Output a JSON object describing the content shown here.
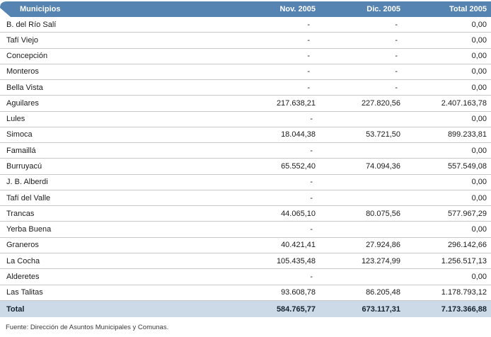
{
  "table": {
    "columns": [
      "Municipios",
      "Nov. 2005",
      "Dic. 2005",
      "Total 2005"
    ],
    "rows": [
      {
        "name": "B. del Río Salí",
        "nov": "-",
        "dic": "-",
        "total": "0,00"
      },
      {
        "name": "Tafí Viejo",
        "nov": "-",
        "dic": "-",
        "total": "0,00"
      },
      {
        "name": "Concepción",
        "nov": "-",
        "dic": "-",
        "total": "0,00"
      },
      {
        "name": "Monteros",
        "nov": "-",
        "dic": "-",
        "total": "0,00"
      },
      {
        "name": "Bella Vista",
        "nov": "-",
        "dic": "-",
        "total": "0,00"
      },
      {
        "name": "Aguilares",
        "nov": "217.638,21",
        "dic": "227.820,56",
        "total": "2.407.163,78"
      },
      {
        "name": "Lules",
        "nov": "-",
        "dic": "",
        "total": "0,00"
      },
      {
        "name": "Simoca",
        "nov": "18.044,38",
        "dic": "53.721,50",
        "total": "899.233,81"
      },
      {
        "name": "Famaillá",
        "nov": "-",
        "dic": "",
        "total": "0,00"
      },
      {
        "name": "Burruyacú",
        "nov": "65.552,40",
        "dic": "74.094,36",
        "total": "557.549,08"
      },
      {
        "name": "J. B. Alberdi",
        "nov": "-",
        "dic": "",
        "total": "0,00"
      },
      {
        "name": "Tafí del Valle",
        "nov": "-",
        "dic": "",
        "total": "0,00"
      },
      {
        "name": "Trancas",
        "nov": "44.065,10",
        "dic": "80.075,56",
        "total": "577.967,29"
      },
      {
        "name": "Yerba Buena",
        "nov": "-",
        "dic": "",
        "total": "0,00"
      },
      {
        "name": "Graneros",
        "nov": "40.421,41",
        "dic": "27.924,86",
        "total": "296.142,66"
      },
      {
        "name": "La Cocha",
        "nov": "105.435,48",
        "dic": "123.274,99",
        "total": "1.256.517,13"
      },
      {
        "name": "Alderetes",
        "nov": "-",
        "dic": "",
        "total": "0,00"
      },
      {
        "name": "Las Talitas",
        "nov": "93.608,78",
        "dic": "86.205,48",
        "total": "1.178.793,12"
      }
    ],
    "total_row": {
      "name": "Total",
      "nov": "584.765,77",
      "dic": "673.117,31",
      "total": "7.173.366,88"
    }
  },
  "footer": {
    "source": "Fuente: Dirección de Asuntos Municipales y Comunas."
  },
  "colors": {
    "header_bg": "#5584b2",
    "header_text": "#ffffff",
    "total_bg": "#ccd9e6",
    "row_border": "#c8c8c8"
  }
}
